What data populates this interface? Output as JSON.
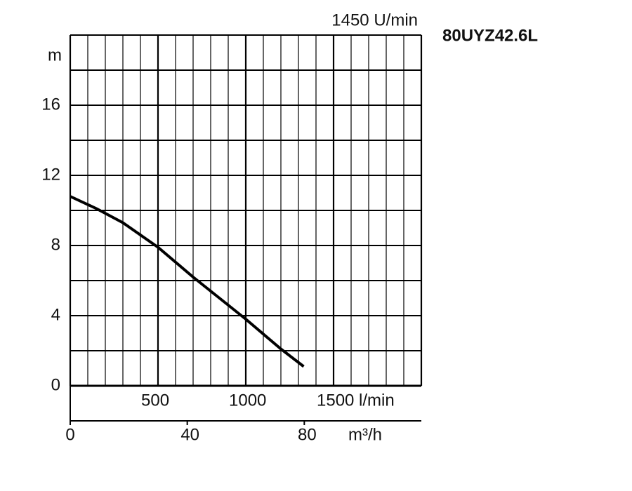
{
  "chart_data": {
    "type": "line",
    "title": "80UYZ42.6L",
    "annotation": "1450 U/min",
    "ylabel": "m",
    "x2label": "m³/h",
    "x": [
      0,
      150,
      300,
      500,
      700,
      850,
      1000,
      1200,
      1330
    ],
    "values": [
      10.8,
      10.1,
      9.3,
      7.9,
      6.2,
      5.0,
      3.8,
      2.1,
      1.1
    ],
    "color": "#000000",
    "xlim": [
      0,
      2000
    ],
    "xticks": [
      0,
      {
        "value": 500,
        "label": "500"
      },
      {
        "value": 1000,
        "label": "1000"
      },
      {
        "value": 1500,
        "label": "1500 l/min"
      },
      2000
    ],
    "x2lim": [
      0,
      120
    ],
    "x2ticks": [
      0,
      40,
      80
    ],
    "ylim": [
      0,
      20
    ],
    "yticks": [
      0,
      4,
      8,
      12,
      16
    ],
    "xgrid": [
      100,
      200,
      300,
      400,
      600,
      700,
      800,
      900,
      1100,
      1200,
      1300,
      1400,
      1600,
      1700,
      1800,
      1900
    ],
    "ygrid": [
      2,
      6,
      10,
      14,
      18,
      20
    ],
    "grid": true
  }
}
